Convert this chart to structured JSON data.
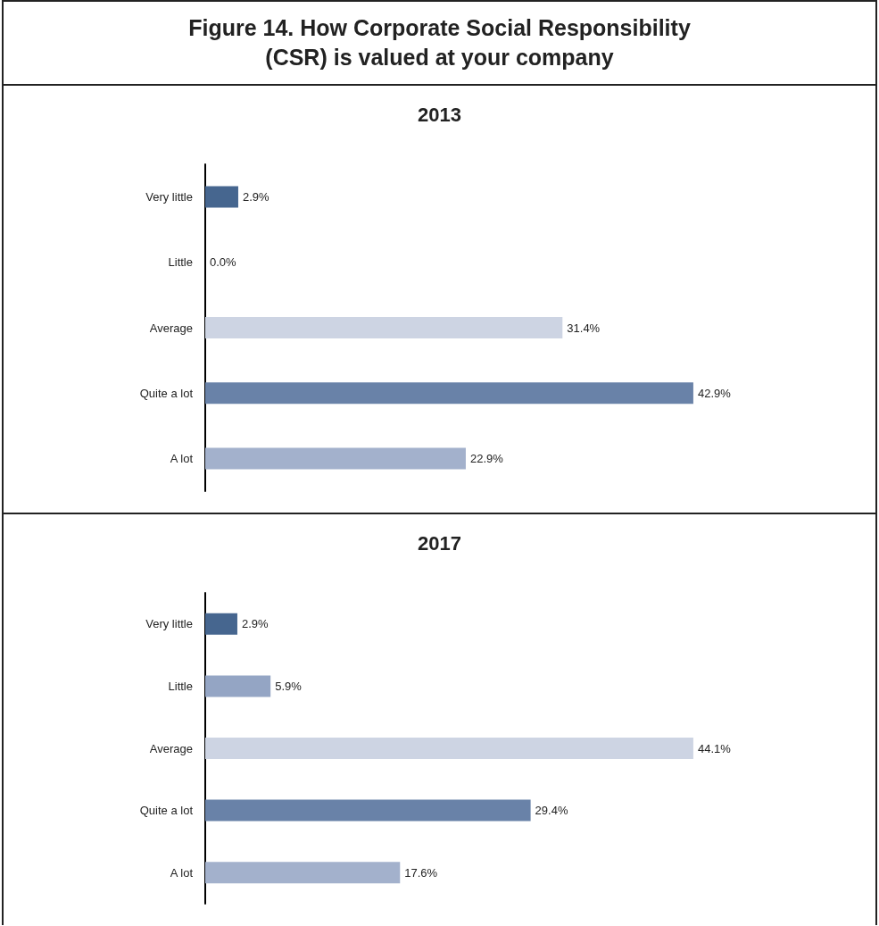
{
  "chart_data": [
    {
      "type": "bar",
      "orientation": "horizontal",
      "title": "Figure 14. How Corporate Social Responsibility (CSR) is valued at your company",
      "subtitle": "2013",
      "categories": [
        "Very little",
        "Little",
        "Average",
        "Quite a lot",
        "A lot"
      ],
      "values": [
        2.9,
        0,
        31.4,
        42.9,
        22.9
      ],
      "value_labels": [
        "2.9%",
        "0.0%",
        "31.4%",
        "42.9%",
        "22.9%"
      ],
      "colors": [
        "#46668f",
        "#94a5c4",
        "#cdd4e3",
        "#6982a8",
        "#a3b1cc"
      ]
    },
    {
      "type": "bar",
      "orientation": "horizontal",
      "title": "2017",
      "categories": [
        "Very little",
        "Little",
        "Average",
        "Quite a lot",
        "A lot"
      ],
      "values": [
        2.9,
        5.9,
        44.1,
        29.4,
        17.6
      ],
      "value_labels": [
        "2.9%",
        "5.9%",
        "44.1%",
        "29.4%",
        "17.6%"
      ],
      "colors": [
        "#46668f",
        "#94a5c4",
        "#cdd4e3",
        "#6982a8",
        "#a3b1cc"
      ]
    }
  ]
}
